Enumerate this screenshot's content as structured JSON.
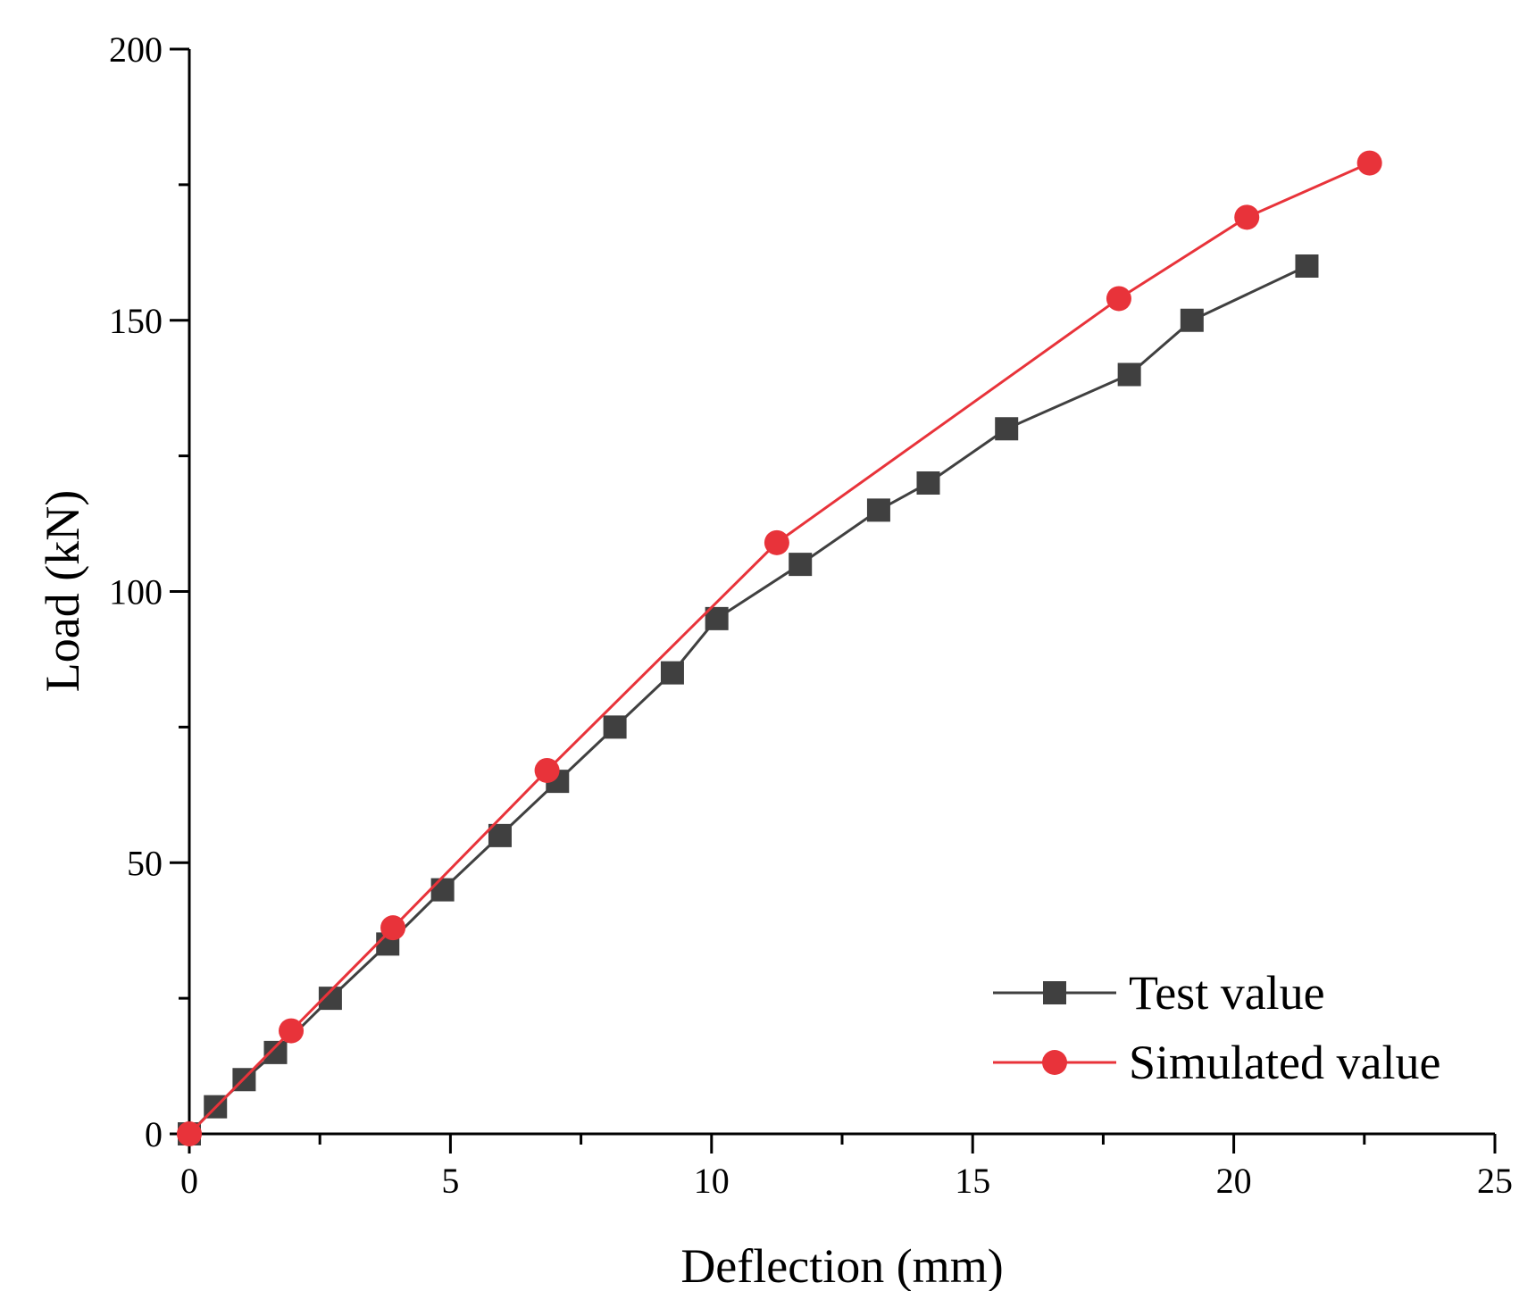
{
  "chart_data": {
    "type": "line",
    "title": "",
    "xlabel": "Deflection (mm)",
    "ylabel": "Load (kN)",
    "xlim": [
      0,
      25
    ],
    "ylim": [
      0,
      200
    ],
    "xticks": [
      0,
      5,
      10,
      15,
      20,
      25
    ],
    "yticks": [
      0,
      50,
      100,
      150,
      200
    ],
    "xtick_labels": [
      "0",
      "5",
      "10",
      "15",
      "20",
      "25"
    ],
    "ytick_labels": [
      "0",
      "50",
      "100",
      "150",
      "200"
    ],
    "grid": false,
    "legend_position": "bottom-right",
    "series": [
      {
        "name": "Test value",
        "color": "#404040",
        "marker": "square",
        "x": [
          0,
          0.5,
          1.05,
          1.65,
          2.7,
          3.8,
          4.85,
          5.95,
          7.05,
          8.15,
          9.25,
          10.1,
          11.7,
          13.2,
          14.15,
          15.65,
          18.0,
          19.2,
          21.4
        ],
        "y": [
          0,
          5,
          10,
          15,
          25,
          35,
          45,
          55,
          65,
          75,
          85,
          95,
          105,
          115,
          120,
          130,
          140,
          150,
          160
        ]
      },
      {
        "name": "Simulated value",
        "color": "#e8333a",
        "marker": "circle",
        "x": [
          0,
          1.95,
          3.9,
          6.85,
          11.25,
          17.8,
          20.25,
          22.6
        ],
        "y": [
          0,
          19,
          38,
          67,
          109,
          154,
          169,
          179
        ]
      }
    ]
  }
}
